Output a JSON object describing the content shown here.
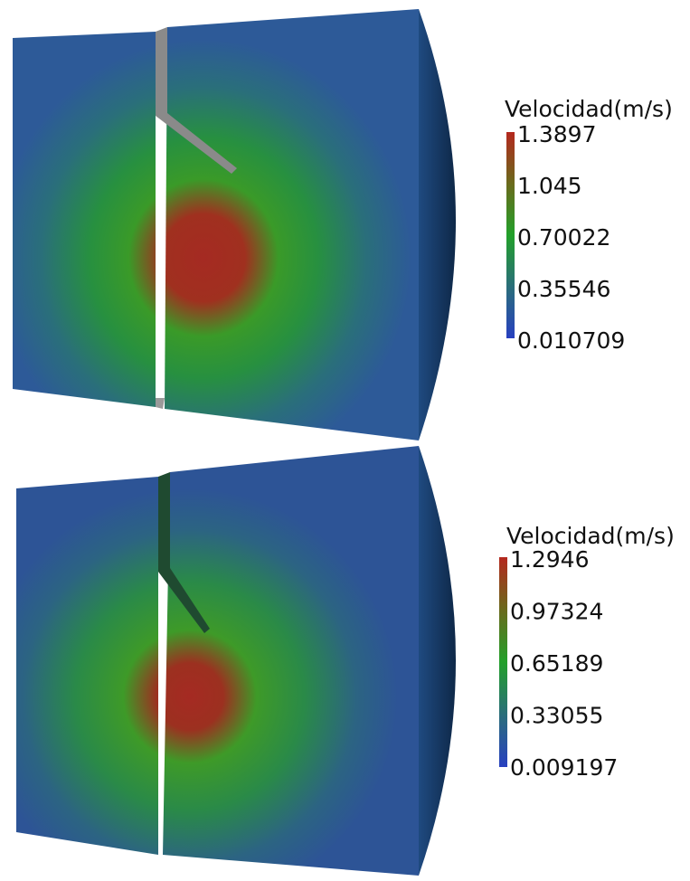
{
  "panels": [
    {
      "legend": {
        "title": "Velocidad(m/s)",
        "ticks": [
          1.3897,
          1.045,
          0.70022,
          0.35546,
          0.010709
        ]
      }
    },
    {
      "legend": {
        "title": "Velocidad(m/s)",
        "ticks": [
          1.2946,
          0.97324,
          0.65189,
          0.33055,
          0.009197
        ]
      }
    }
  ]
}
